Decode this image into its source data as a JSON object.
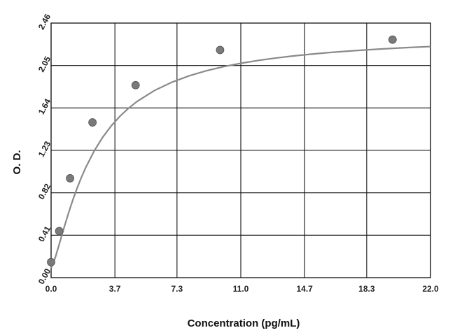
{
  "chart_data": {
    "type": "scatter",
    "title": "",
    "xlabel": "Concentration (pg/mL)",
    "ylabel": "O. D.",
    "x_ticks": [
      "0.0",
      "3.7",
      "7.3",
      "11.0",
      "14.7",
      "18.3",
      "22.0"
    ],
    "y_ticks": [
      "0.00",
      "0.41",
      "0.82",
      "1.23",
      "1.64",
      "2.05",
      "2.46"
    ],
    "xlim": [
      0,
      22
    ],
    "ylim": [
      0,
      2.46
    ],
    "grid": true,
    "legend": "none",
    "colors": {
      "curve": "#8a8a8a",
      "point": "#7a7a7a",
      "grid": "#111111"
    },
    "series": [
      {
        "points": [
          {
            "x": 0.0,
            "y": 0.15
          },
          {
            "x": 0.47,
            "y": 0.45
          },
          {
            "x": 1.1,
            "y": 0.96
          },
          {
            "x": 2.4,
            "y": 1.5
          },
          {
            "x": 4.9,
            "y": 1.86
          },
          {
            "x": 9.8,
            "y": 2.2
          },
          {
            "x": 19.8,
            "y": 2.3
          }
        ]
      }
    ],
    "fit_curve": {
      "model": "4PL",
      "a": 0.09,
      "b": 1.3,
      "c": 2.5,
      "d": 2.36,
      "x": [
        0.0,
        0.25,
        0.5,
        0.75,
        1.0,
        1.25,
        1.5,
        1.75,
        2.0,
        2.5,
        3.0,
        3.5,
        4.0,
        4.5,
        5.0,
        6.0,
        7.0,
        8.0,
        9.0,
        10.0,
        11.0,
        12.0,
        13.0,
        14.0,
        15.0,
        16.0,
        17.0,
        18.0,
        19.0,
        20.0,
        21.0,
        22.0
      ]
    }
  }
}
